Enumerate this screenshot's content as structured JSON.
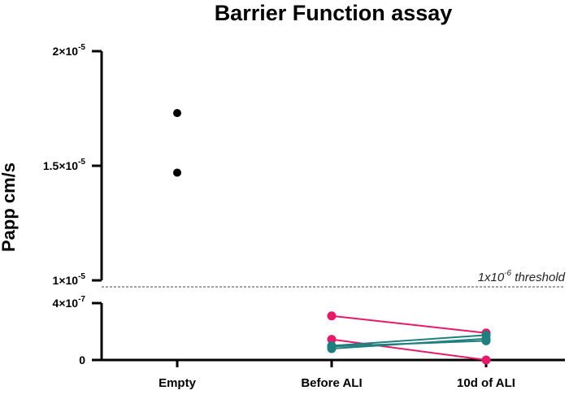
{
  "chart_data": {
    "type": "scatter",
    "title": "Barrier Function assay",
    "ylabel": "Papp cm/s",
    "categories": [
      "Empty",
      "Before ALI",
      "10d of ALI"
    ],
    "y_axis_segments": [
      {
        "ylim": [
          1e-05,
          2e-05
        ],
        "ticks": [
          {
            "value": 2e-05,
            "label": "2×10",
            "exp": "-5"
          },
          {
            "value": 1.5e-05,
            "label": "1.5×10",
            "exp": "-5"
          },
          {
            "value": 1e-05,
            "label": "1×10",
            "exp": "-5"
          }
        ]
      },
      {
        "ylim": [
          0,
          4e-07
        ],
        "ticks": [
          {
            "value": 4e-07,
            "label": "4×10",
            "exp": "-7"
          },
          {
            "value": 0,
            "label": "0",
            "exp": ""
          }
        ]
      }
    ],
    "threshold": {
      "value": 1e-06,
      "label_pre": "1x10",
      "label_exp": "-6",
      "label_post": " threshold"
    },
    "empty_points": [
      1.73e-05,
      1.47e-05
    ],
    "paired_series": [
      {
        "color": "#e8196a",
        "values": [
          3.1e-07,
          1.9e-07
        ]
      },
      {
        "color": "#e8196a",
        "values": [
          1.45e-07,
          0
        ]
      },
      {
        "color": "#1f7f7f",
        "values": [
          1e-07,
          1.75e-07
        ]
      },
      {
        "color": "#1f7f7f",
        "values": [
          8e-08,
          1.5e-07
        ]
      },
      {
        "color": "#1f7f7f",
        "values": [
          9.5e-08,
          1.35e-07
        ]
      }
    ],
    "colors": {
      "empty": "#000000",
      "pink": "#e8196a",
      "teal": "#1f7f7f"
    },
    "grid": false,
    "legend": "none"
  }
}
